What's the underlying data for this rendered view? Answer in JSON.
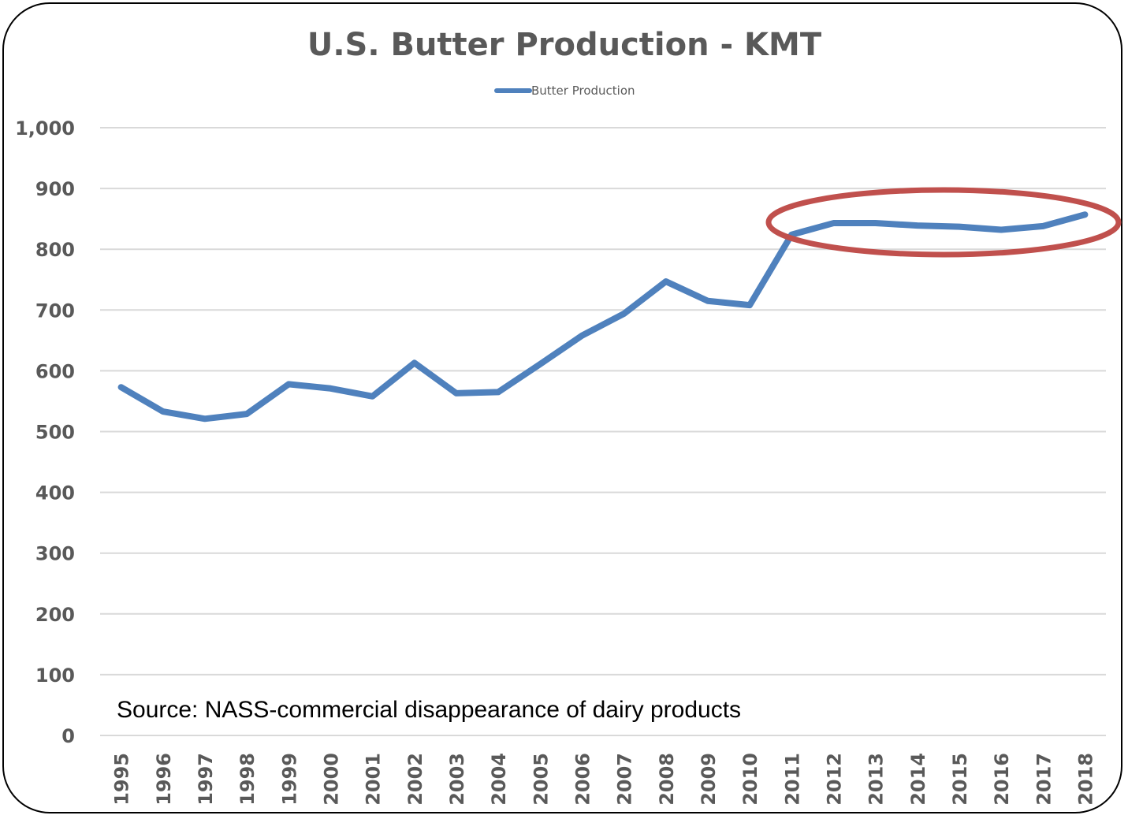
{
  "chart_data": {
    "type": "line",
    "title": "U.S. Butter Production - KMT",
    "xlabel": "",
    "ylabel": "",
    "categories": [
      "1995",
      "1996",
      "1997",
      "1998",
      "1999",
      "2000",
      "2001",
      "2002",
      "2003",
      "2004",
      "2005",
      "2006",
      "2007",
      "2008",
      "2009",
      "2010",
      "2011",
      "2012",
      "2013",
      "2014",
      "2015",
      "2016",
      "2017",
      "2018"
    ],
    "series": [
      {
        "name": "Butter Production",
        "color": "#4F81BD",
        "values": [
          573,
          533,
          521,
          529,
          578,
          571,
          558,
          613,
          563,
          565,
          611,
          658,
          694,
          747,
          715,
          708,
          824,
          843,
          843,
          839,
          837,
          832,
          838,
          857
        ]
      }
    ],
    "ylim": [
      0,
      1000
    ],
    "yticks": [
      "0",
      "100",
      "200",
      "300",
      "400",
      "500",
      "600",
      "700",
      "800",
      "900",
      "1,000"
    ],
    "grid": true,
    "legend_position": "top",
    "annotation": {
      "shape": "ellipse",
      "color": "#C0504D",
      "highlights": [
        "2011",
        "2018"
      ],
      "text": "Source:  NASS-commercial disappearance of dairy products"
    }
  }
}
